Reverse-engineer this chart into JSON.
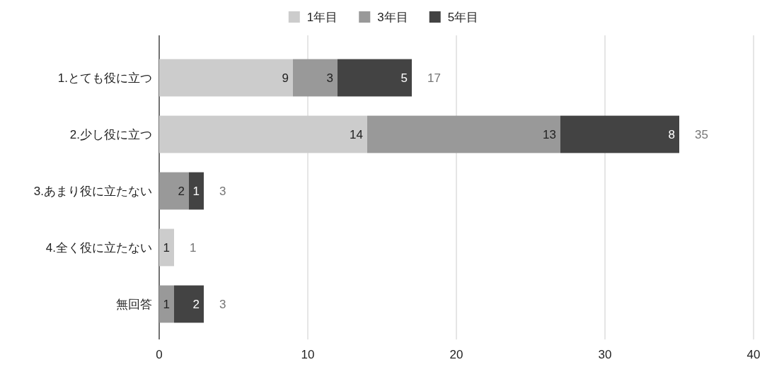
{
  "chart_data": {
    "type": "bar",
    "orientation": "horizontal",
    "stacked": true,
    "categories": [
      "1.とても役に立つ",
      "2.少し役に立つ",
      "3.あまり役に立たない",
      "4.全く役に立たない",
      "無回答"
    ],
    "series": [
      {
        "name": "1年目",
        "color": "#cccccc",
        "values": [
          9,
          14,
          null,
          1,
          null
        ]
      },
      {
        "name": "3年目",
        "color": "#999999",
        "values": [
          3,
          13,
          2,
          null,
          1
        ]
      },
      {
        "name": "5年目",
        "color": "#434343",
        "values": [
          5,
          8,
          1,
          null,
          2
        ]
      }
    ],
    "xlim": [
      0,
      40
    ],
    "xticks": [
      0,
      10,
      20,
      30,
      40
    ],
    "grid": "x",
    "legend": "top",
    "data_labels": true,
    "totals": [
      "17",
      "35",
      "3",
      "1",
      "3"
    ]
  }
}
